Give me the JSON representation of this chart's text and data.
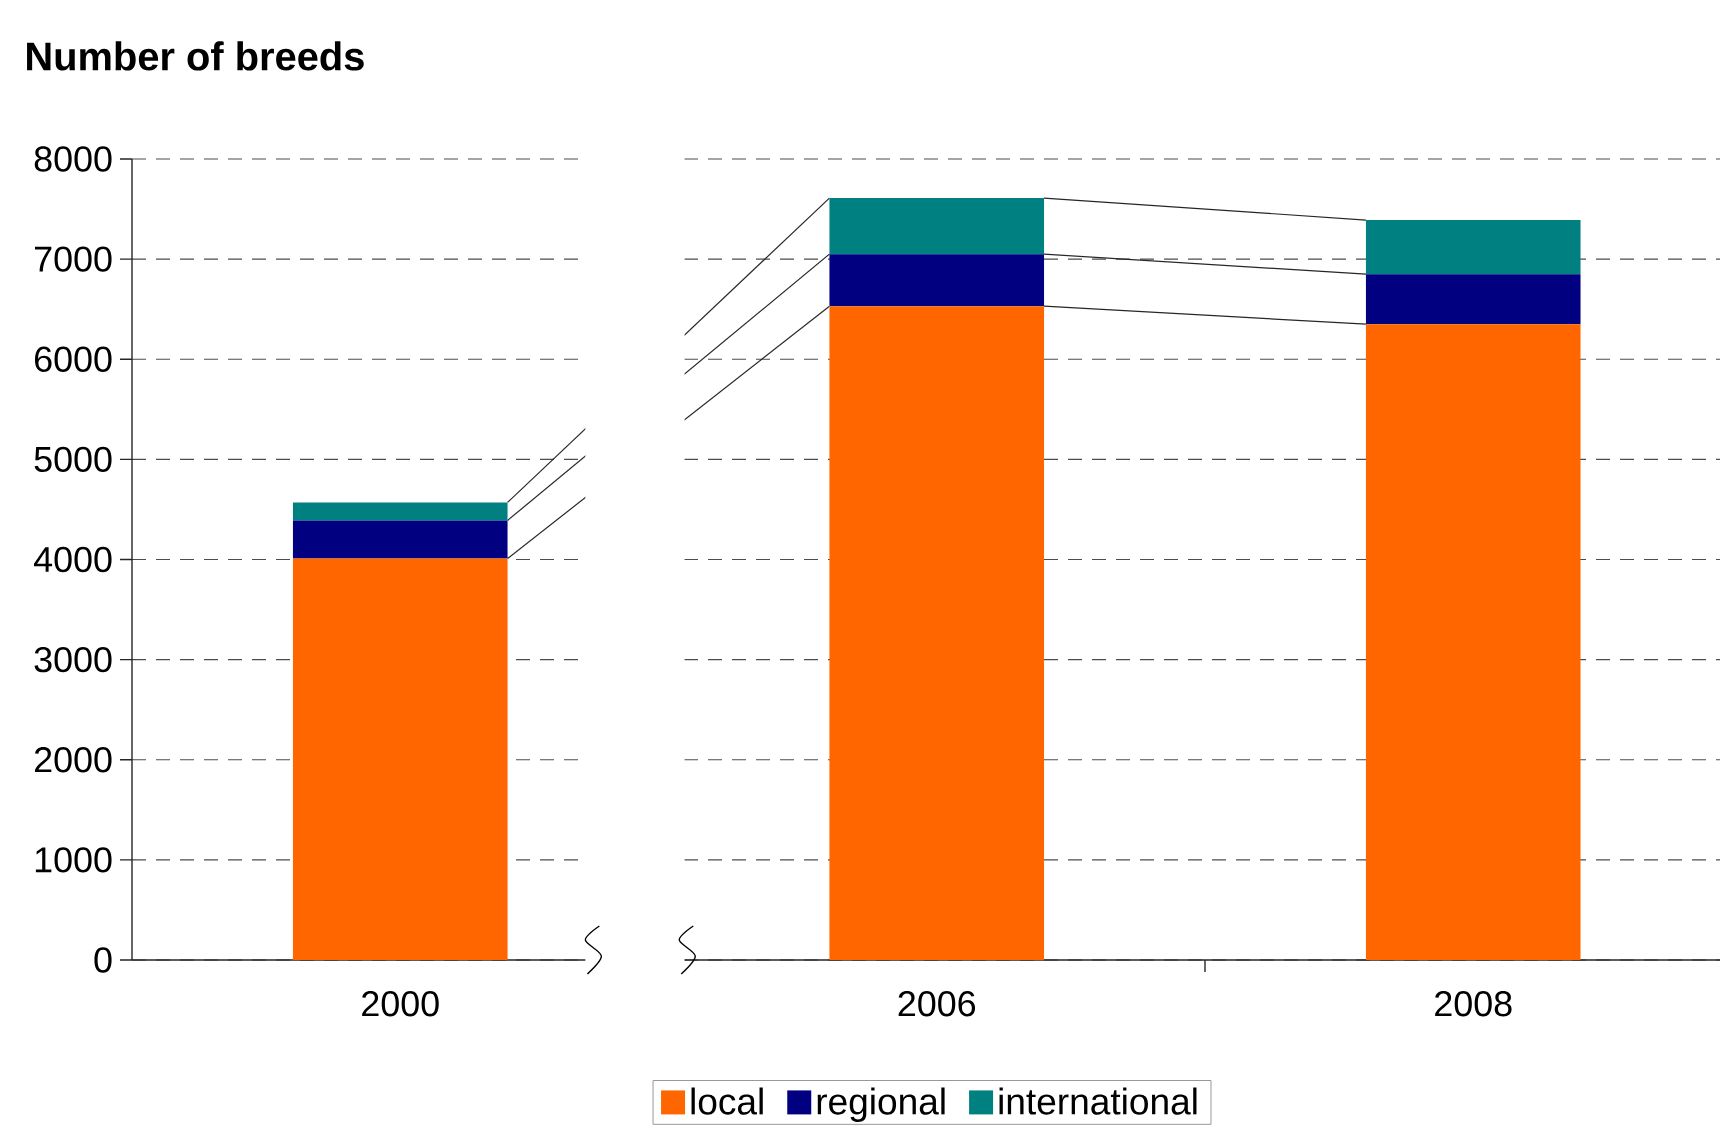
{
  "chart_data": {
    "type": "bar",
    "title": "Number of breeds",
    "categories": [
      "2000",
      "2006",
      "2008"
    ],
    "stacked": true,
    "series": [
      {
        "name": "local",
        "color": "#ff6600",
        "values": [
          4010,
          6530,
          6350
        ]
      },
      {
        "name": "regional",
        "color": "#000080",
        "values": [
          380,
          520,
          500
        ]
      },
      {
        "name": "international",
        "color": "#008080",
        "values": [
          180,
          560,
          540
        ]
      }
    ],
    "ylim": [
      0,
      8000
    ],
    "yticks": [
      0,
      1000,
      2000,
      3000,
      4000,
      5000,
      6000,
      7000,
      8000
    ],
    "grid": "y",
    "legend": "bottom"
  }
}
